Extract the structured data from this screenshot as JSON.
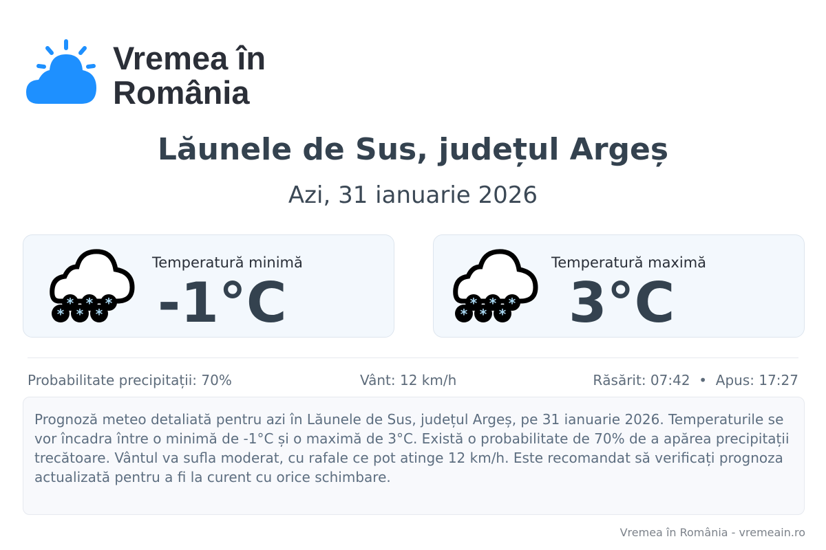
{
  "brand": {
    "name": "Vremea în România",
    "logo_color": "#1e90ff"
  },
  "header": {
    "title": "Lăunele de Sus, județul Argeș",
    "subtitle": "Azi, 31 ianuarie 2026"
  },
  "cards": [
    {
      "label": "Temperatură minimă",
      "value": "-1°C",
      "icon": "snow-cloud-icon"
    },
    {
      "label": "Temperatură maximă",
      "value": "3°C",
      "icon": "snow-cloud-icon"
    }
  ],
  "info": {
    "precipitation": "Probabilitate precipitații: 70%",
    "wind": "Vânt: 12 km/h",
    "sun": "Răsărit: 07:42  •  Apus: 17:27"
  },
  "description": "Prognoză meteo detaliată pentru azi în Lăunele de Sus, județul Argeș, pe 31 ianuarie 2026. Temperaturile se vor încadra între o minimă de -1°C și o maximă de 3°C. Există o probabilitate de 70% de a apărea precipitații trecătoare. Vântul va sufla moderat, cu rafale ce pot atinge 12 km/h. Este recomandat să verificați prognoza actualizată pentru a fi la curent cu orice schimbare.",
  "footer": "Vremea în România - vremeain.ro"
}
